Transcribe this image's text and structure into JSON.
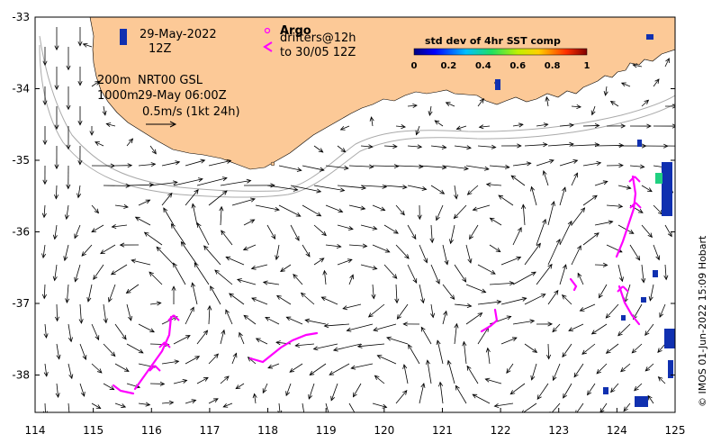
{
  "annotations": {
    "date": "29-May-2022",
    "time": "12Z",
    "depth1": "200m",
    "depth2": "1000m",
    "product": "NRT00 GSL",
    "product_time": "29-May 06:00Z",
    "scale_label": "0.5m/s (1kt 24h)"
  },
  "legend": {
    "argo": "Argo",
    "drifters_line1": "drifters@12h",
    "drifters_line2": "to 30/05 12Z",
    "colors": {
      "argo": "#ff00ff",
      "drifters": "#ff00ff"
    }
  },
  "colorbar": {
    "title": "std dev of 4hr SST comp",
    "ticks": [
      "0",
      "0.2",
      "0.4",
      "0.6",
      "0.8",
      "1"
    ]
  },
  "axes": {
    "x_ticks": [
      "114",
      "115",
      "116",
      "117",
      "118",
      "119",
      "120",
      "121",
      "122",
      "123",
      "124",
      "125"
    ],
    "y_ticks": [
      "-33",
      "-34",
      "-35",
      "-36",
      "-37",
      "-38"
    ]
  },
  "credit": "© IMOS 01-Jun-2022 15:09 Hobart",
  "colors": {
    "land": "#fcc997",
    "vectors": "#000000",
    "drifter_tracks": "#ff00ff",
    "isobaths": "#aaaaaa"
  }
}
